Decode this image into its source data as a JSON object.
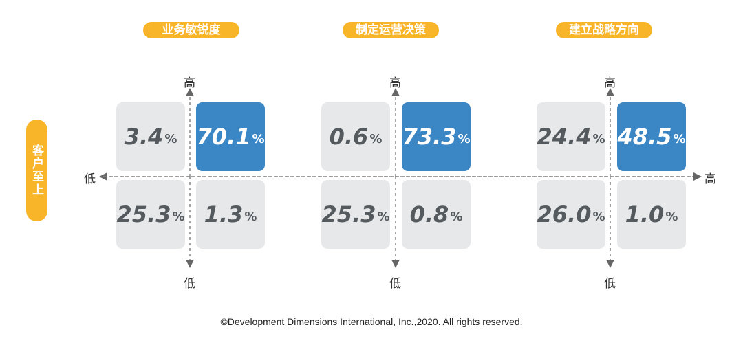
{
  "y_axis_title": "客户至上",
  "axis": {
    "high": "高",
    "low": "低"
  },
  "matrices": [
    {
      "title": "业务敏锐度",
      "cells": {
        "tl": "3.4",
        "tr": "70.1",
        "bl": "25.3",
        "br": "1.3"
      }
    },
    {
      "title": "制定运营决策",
      "cells": {
        "tl": "0.6",
        "tr": "73.3",
        "bl": "25.3",
        "br": "0.8"
      }
    },
    {
      "title": "建立战略方向",
      "cells": {
        "tl": "24.4",
        "tr": "48.5",
        "bl": "26.0",
        "br": "1.0"
      }
    }
  ],
  "percent_sign": "%",
  "footer": "©Development Dimensions International, Inc.,2020. All rights reserved.",
  "colors": {
    "accent": "#f8b52a",
    "highlight": "#3b86c4",
    "cell": "#e6e8ea"
  }
}
